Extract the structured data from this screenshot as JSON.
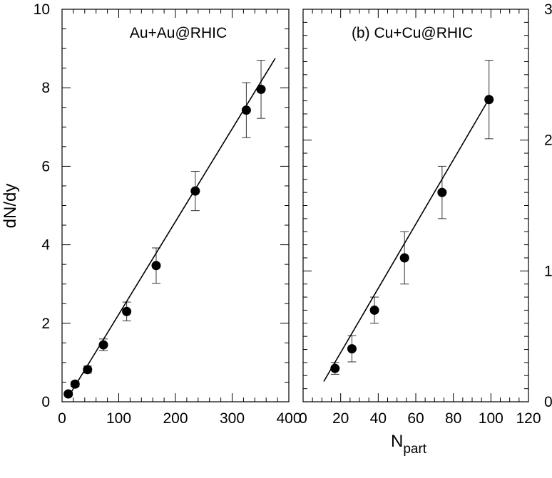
{
  "figure": {
    "xlabel": "N",
    "xlabel_sub": "part",
    "ylabel": "dN/dy"
  },
  "chart_data": [
    {
      "type": "scatter",
      "title": "Au+Au@RHIC",
      "xlim": [
        0,
        400
      ],
      "ylim": [
        0,
        10
      ],
      "x_ticks": [
        "0",
        "100",
        "200",
        "300",
        "400"
      ],
      "y_ticks": [
        "0",
        "2",
        "4",
        "6",
        "8",
        "10"
      ],
      "series": [
        {
          "kind": "points",
          "x": [
            11,
            23,
            45,
            73,
            114,
            166,
            235,
            325,
            351
          ],
          "y": [
            0.2,
            0.45,
            0.82,
            1.45,
            2.3,
            3.47,
            5.37,
            7.43,
            7.96
          ],
          "err": [
            0.05,
            0.06,
            0.09,
            0.15,
            0.24,
            0.45,
            0.5,
            0.7,
            0.74
          ]
        },
        {
          "kind": "line",
          "x": [
            10,
            376
          ],
          "y": [
            0.1,
            8.75
          ]
        }
      ]
    },
    {
      "type": "scatter",
      "title": "(b) Cu+Cu@RHIC",
      "xlim": [
        0,
        120
      ],
      "ylim": [
        0,
        3
      ],
      "x_ticks": [
        "0",
        "20",
        "40",
        "60",
        "80",
        "100",
        "120"
      ],
      "y_ticks": [
        "0",
        "1",
        "2",
        "3"
      ],
      "series": [
        {
          "kind": "points",
          "x": [
            17,
            26,
            38,
            54,
            74,
            99
          ],
          "y": [
            0.255,
            0.405,
            0.7,
            1.1,
            1.6,
            2.31
          ],
          "err": [
            0.045,
            0.1,
            0.1,
            0.2,
            0.2,
            0.3
          ]
        },
        {
          "kind": "line",
          "x": [
            11,
            100
          ],
          "y": [
            0.155,
            2.34
          ]
        }
      ]
    }
  ]
}
